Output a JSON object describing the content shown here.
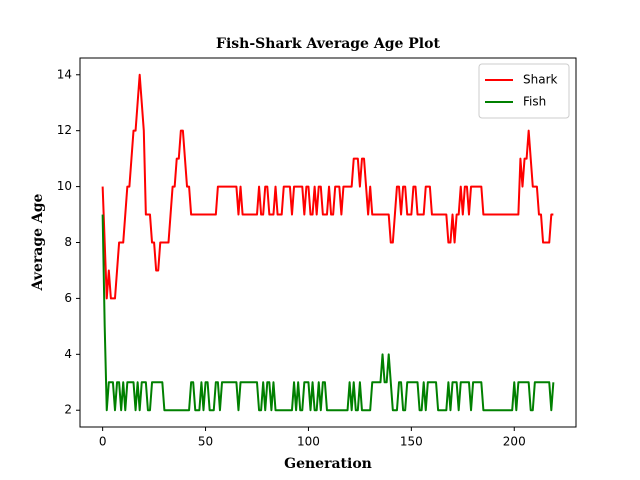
{
  "chart_data": {
    "type": "line",
    "title": "Fish-Shark Average Age Plot",
    "xlabel": "Generation",
    "ylabel": "Average Age",
    "x": [
      0,
      1,
      2,
      3,
      4,
      5,
      6,
      7,
      8,
      9,
      10,
      11,
      12,
      13,
      14,
      15,
      16,
      17,
      18,
      19,
      20,
      21,
      22,
      23,
      24,
      25,
      26,
      27,
      28,
      29,
      30,
      31,
      32,
      33,
      34,
      35,
      36,
      37,
      38,
      39,
      40,
      41,
      42,
      43,
      44,
      45,
      46,
      47,
      48,
      49,
      50,
      51,
      52,
      53,
      54,
      55,
      56,
      57,
      58,
      59,
      60,
      61,
      62,
      63,
      64,
      65,
      66,
      67,
      68,
      69,
      70,
      71,
      72,
      73,
      74,
      75,
      76,
      77,
      78,
      79,
      80,
      81,
      82,
      83,
      84,
      85,
      86,
      87,
      88,
      89,
      90,
      91,
      92,
      93,
      94,
      95,
      96,
      97,
      98,
      99,
      100,
      101,
      102,
      103,
      104,
      105,
      106,
      107,
      108,
      109,
      110,
      111,
      112,
      113,
      114,
      115,
      116,
      117,
      118,
      119,
      120,
      121,
      122,
      123,
      124,
      125,
      126,
      127,
      128,
      129,
      130,
      131,
      132,
      133,
      134,
      135,
      136,
      137,
      138,
      139,
      140,
      141,
      142,
      143,
      144,
      145,
      146,
      147,
      148,
      149,
      150,
      151,
      152,
      153,
      154,
      155,
      156,
      157,
      158,
      159,
      160,
      161,
      162,
      163,
      164,
      165,
      166,
      167,
      168,
      169,
      170,
      171,
      172,
      173,
      174,
      175,
      176,
      177,
      178,
      179,
      180,
      181,
      182,
      183,
      184,
      185,
      186,
      187,
      188,
      189,
      190,
      191,
      192,
      193,
      194,
      195,
      196,
      197,
      198,
      199,
      200,
      201,
      202,
      203,
      204,
      205,
      206,
      207,
      208,
      209,
      210,
      211,
      212,
      213,
      214,
      215,
      216,
      217,
      218,
      219
    ],
    "series": [
      {
        "name": "Shark",
        "color": "#ff0000",
        "values": [
          10,
          8,
          6,
          7,
          6,
          6,
          6,
          7,
          8,
          8,
          8,
          9,
          10,
          10,
          11,
          12,
          12,
          13,
          14,
          13,
          12,
          9,
          9,
          9,
          8,
          8,
          7,
          7,
          8,
          8,
          8,
          8,
          8,
          9,
          10,
          10,
          11,
          11,
          12,
          12,
          11,
          10,
          10,
          9,
          9,
          9,
          9,
          9,
          9,
          9,
          9,
          9,
          9,
          9,
          9,
          9,
          10,
          10,
          10,
          10,
          10,
          10,
          10,
          10,
          10,
          10,
          9,
          10,
          9,
          9,
          9,
          9,
          9,
          9,
          9,
          9,
          10,
          9,
          9,
          10,
          10,
          9,
          9,
          9,
          10,
          9,
          9,
          9,
          10,
          10,
          10,
          10,
          9,
          10,
          10,
          10,
          10,
          10,
          9,
          10,
          10,
          9,
          9,
          10,
          9,
          10,
          10,
          9,
          9,
          9,
          10,
          9,
          9,
          10,
          10,
          10,
          9,
          10,
          10,
          10,
          10,
          10,
          11,
          11,
          11,
          10,
          11,
          11,
          10,
          9,
          10,
          9,
          9,
          9,
          9,
          9,
          9,
          9,
          9,
          9,
          8,
          8,
          9,
          10,
          10,
          9,
          10,
          10,
          9,
          9,
          9,
          10,
          10,
          9,
          9,
          9,
          9,
          10,
          10,
          10,
          9,
          9,
          9,
          9,
          9,
          9,
          9,
          9,
          8,
          8,
          9,
          8,
          9,
          9,
          10,
          9,
          10,
          10,
          9,
          10,
          10,
          10,
          10,
          10,
          10,
          9,
          9,
          9,
          9,
          9,
          9,
          9,
          9,
          9,
          9,
          9,
          9,
          9,
          9,
          9,
          9,
          9,
          9,
          11,
          10,
          11,
          11,
          12,
          11,
          10,
          10,
          10,
          9,
          9,
          8,
          8,
          8,
          8,
          9,
          9
        ]
      },
      {
        "name": "Fish",
        "color": "#008000",
        "values": [
          9,
          5,
          2,
          3,
          3,
          3,
          2,
          3,
          3,
          2,
          3,
          2,
          3,
          3,
          3,
          3,
          2,
          3,
          2,
          3,
          3,
          3,
          2,
          2,
          3,
          3,
          3,
          3,
          3,
          3,
          2,
          2,
          2,
          2,
          2,
          2,
          2,
          2,
          2,
          2,
          2,
          2,
          2,
          3,
          3,
          2,
          2,
          2,
          3,
          2,
          3,
          3,
          2,
          2,
          2,
          3,
          3,
          2,
          3,
          3,
          3,
          3,
          3,
          3,
          3,
          3,
          2,
          3,
          3,
          3,
          3,
          3,
          3,
          3,
          3,
          3,
          2,
          2,
          3,
          2,
          3,
          3,
          2,
          3,
          2,
          2,
          2,
          2,
          2,
          2,
          2,
          2,
          2,
          3,
          2,
          3,
          2,
          2,
          3,
          3,
          3,
          2,
          3,
          2,
          2,
          3,
          2,
          3,
          3,
          2,
          2,
          2,
          2,
          2,
          2,
          2,
          2,
          2,
          2,
          2,
          3,
          2,
          3,
          2,
          2,
          3,
          2,
          2,
          2,
          2,
          2,
          3,
          3,
          3,
          3,
          3,
          4,
          3,
          3,
          4,
          3,
          2,
          2,
          2,
          3,
          3,
          2,
          2,
          3,
          3,
          3,
          3,
          3,
          3,
          2,
          2,
          3,
          2,
          3,
          3,
          3,
          3,
          3,
          2,
          2,
          2,
          2,
          2,
          3,
          2,
          3,
          3,
          3,
          2,
          3,
          3,
          3,
          3,
          3,
          2,
          3,
          3,
          3,
          3,
          3,
          2,
          2,
          2,
          2,
          2,
          2,
          2,
          2,
          2,
          2,
          2,
          2,
          2,
          2,
          2,
          3,
          2,
          3,
          3,
          3,
          3,
          3,
          3,
          2,
          2,
          3,
          3,
          3,
          3,
          3,
          3,
          3,
          3,
          2,
          3
        ]
      }
    ],
    "xlim": [
      -11,
      230
    ],
    "xticks": [
      0,
      50,
      100,
      150,
      200
    ],
    "ylim": [
      1.4,
      14.6
    ],
    "yticks": [
      2,
      4,
      6,
      8,
      10,
      12,
      14
    ],
    "legend": "upper right"
  }
}
